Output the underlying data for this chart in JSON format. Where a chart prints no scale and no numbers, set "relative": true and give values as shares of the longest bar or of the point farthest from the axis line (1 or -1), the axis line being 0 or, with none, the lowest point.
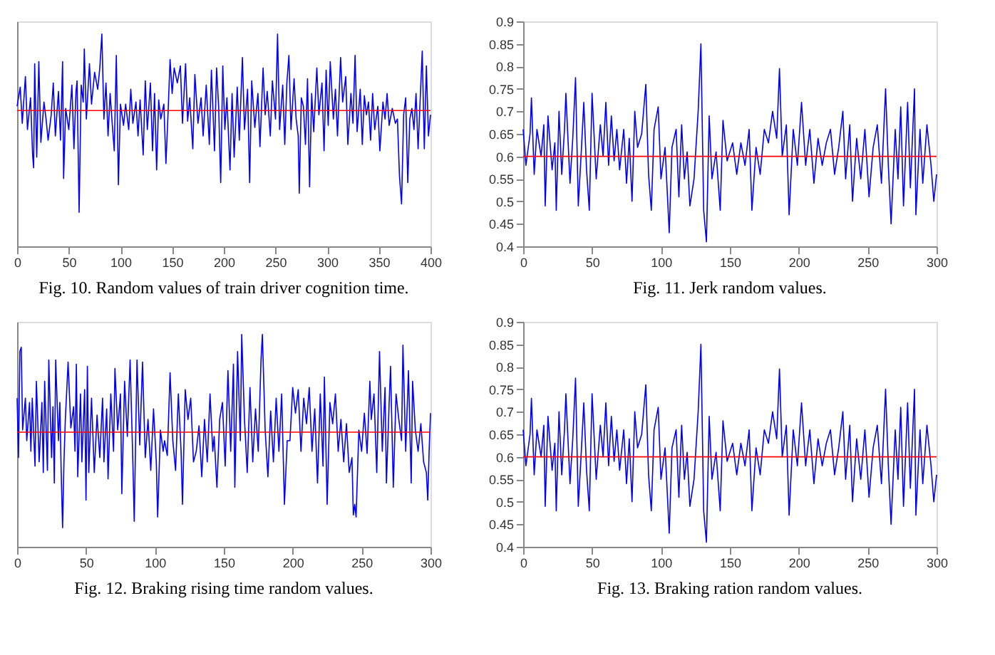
{
  "chart_data": [
    {
      "type": "line",
      "title": "Fig. 10. Random values of train driver cognition time.",
      "relative": true,
      "xlim": [
        0,
        400
      ],
      "xticks": [
        0,
        50,
        100,
        150,
        200,
        250,
        300,
        350,
        400
      ],
      "grid": false,
      "legend": false,
      "ref_lines": [
        {
          "axis": "y",
          "value": 0.64,
          "color": "#ff0000"
        }
      ],
      "series": [
        {
          "color": "#0000ff",
          "x": [
            0,
            3,
            5,
            8,
            10,
            13,
            15,
            16,
            17,
            19,
            21,
            23,
            26,
            28,
            30,
            33,
            35,
            37,
            40,
            42,
            44,
            45,
            47,
            50,
            53,
            55,
            57,
            58,
            60,
            62,
            64,
            65,
            67,
            70,
            72,
            75,
            78,
            80,
            82,
            84,
            86,
            88,
            90,
            92,
            94,
            96,
            98,
            100,
            103,
            105,
            108,
            110,
            112,
            115,
            117,
            119,
            122,
            124,
            126,
            129,
            131,
            133,
            135,
            137,
            139,
            142,
            144,
            146,
            148,
            150,
            152,
            155,
            158,
            160,
            163,
            165,
            167,
            170,
            172,
            175,
            178,
            180,
            183,
            186,
            188,
            191,
            193,
            195,
            197,
            199,
            201,
            203,
            206,
            208,
            210,
            213,
            215,
            218,
            220,
            223,
            225,
            227,
            230,
            233,
            235,
            238,
            240,
            242,
            245,
            247,
            250,
            252,
            254,
            257,
            259,
            261,
            263,
            265,
            268,
            270,
            272,
            273,
            275,
            277,
            279,
            281,
            283,
            285,
            287,
            290,
            292,
            295,
            297,
            299,
            301,
            303,
            306,
            308,
            310,
            313,
            315,
            318,
            320,
            323,
            325,
            327,
            329,
            332,
            334,
            336,
            338,
            340,
            342,
            344,
            346,
            349,
            351,
            354,
            356,
            358,
            360,
            363,
            366,
            368,
            370,
            372,
            374,
            376,
            378,
            380,
            382,
            384,
            386,
            388,
            390,
            392,
            394,
            396,
            398,
            400
          ],
          "values": [
            0.66,
            0.75,
            0.58,
            0.8,
            0.55,
            0.7,
            0.43,
            0.37,
            0.86,
            0.42,
            0.87,
            0.49,
            0.68,
            0.6,
            0.5,
            0.62,
            0.77,
            0.52,
            0.73,
            0.5,
            0.87,
            0.32,
            0.65,
            0.55,
            0.76,
            0.46,
            0.73,
            0.78,
            0.16,
            0.76,
            0.68,
            0.93,
            0.6,
            0.86,
            0.67,
            0.82,
            0.74,
            0.84,
            1.0,
            0.6,
            0.77,
            0.52,
            0.72,
            0.58,
            0.45,
            0.9,
            0.29,
            0.67,
            0.57,
            0.67,
            0.55,
            0.74,
            0.58,
            0.68,
            0.52,
            0.69,
            0.43,
            0.78,
            0.55,
            0.77,
            0.45,
            0.72,
            0.36,
            0.69,
            0.6,
            0.67,
            0.39,
            0.62,
            0.88,
            0.72,
            0.84,
            0.77,
            0.85,
            0.58,
            0.86,
            0.59,
            0.7,
            0.46,
            0.81,
            0.58,
            0.7,
            0.52,
            0.76,
            0.48,
            0.83,
            0.45,
            0.84,
            0.66,
            0.3,
            0.85,
            0.55,
            0.7,
            0.36,
            0.72,
            0.42,
            0.75,
            0.5,
            0.89,
            0.55,
            0.74,
            0.3,
            0.78,
            0.56,
            0.72,
            0.47,
            0.84,
            0.62,
            0.73,
            0.52,
            0.78,
            0.6,
            1.0,
            0.55,
            0.76,
            0.48,
            0.77,
            0.9,
            0.55,
            0.79,
            0.6,
            0.52,
            0.25,
            0.7,
            0.66,
            0.48,
            0.79,
            0.28,
            0.72,
            0.54,
            0.84,
            0.62,
            0.77,
            0.45,
            0.83,
            0.57,
            0.87,
            0.6,
            0.74,
            0.52,
            0.89,
            0.68,
            0.8,
            0.48,
            0.72,
            0.58,
            0.9,
            0.54,
            0.74,
            0.48,
            0.71,
            0.62,
            0.68,
            0.5,
            0.72,
            0.55,
            0.66,
            0.45,
            0.68,
            0.6,
            0.72,
            0.57,
            0.65,
            0.58,
            0.6,
            0.33,
            0.2,
            0.62,
            0.7,
            0.3,
            0.6,
            0.65,
            0.55,
            0.72,
            0.46,
            0.69,
            0.92,
            0.46,
            0.85,
            0.52,
            0.62
          ]
        }
      ]
    },
    {
      "type": "line",
      "title": "Fig. 11. Jerk random values.",
      "ylim": [
        0.4,
        0.9
      ],
      "yticks": [
        0.4,
        0.45,
        0.5,
        0.55,
        0.6,
        0.65,
        0.7,
        0.75,
        0.8,
        0.85,
        0.9
      ],
      "xlim": [
        0,
        300
      ],
      "xticks": [
        0,
        50,
        100,
        150,
        200,
        250,
        300
      ],
      "grid": false,
      "legend": false,
      "ref_lines": [
        {
          "axis": "y",
          "value": 0.6,
          "color": "#ff0000"
        }
      ],
      "series": [
        {
          "color": "#0000ff",
          "x": [
            0,
            2,
            5,
            6,
            8,
            10,
            13,
            15,
            16,
            18,
            21,
            23,
            24,
            26,
            28,
            30,
            31,
            34,
            36,
            38,
            40,
            42,
            44,
            46,
            48,
            50,
            53,
            56,
            58,
            60,
            62,
            64,
            66,
            68,
            70,
            73,
            75,
            77,
            79,
            81,
            83,
            86,
            89,
            91,
            93,
            95,
            98,
            100,
            103,
            106,
            108,
            111,
            113,
            115,
            117,
            119,
            121,
            124,
            127,
            129,
            131,
            133,
            135,
            137,
            140,
            143,
            145,
            148,
            152,
            155,
            158,
            161,
            164,
            166,
            169,
            172,
            175,
            178,
            181,
            184,
            186,
            188,
            191,
            193,
            196,
            199,
            202,
            205,
            208,
            211,
            214,
            217,
            220,
            223,
            226,
            229,
            232,
            234,
            237,
            239,
            242,
            245,
            248,
            251,
            254,
            257,
            260,
            263,
            265,
            267,
            270,
            272,
            274,
            276,
            279,
            281,
            284,
            285,
            288,
            290,
            293,
            296,
            298,
            300
          ],
          "values": [
            0.66,
            0.58,
            0.65,
            0.73,
            0.56,
            0.66,
            0.6,
            0.67,
            0.49,
            0.69,
            0.57,
            0.63,
            0.48,
            0.7,
            0.56,
            0.66,
            0.74,
            0.54,
            0.64,
            0.775,
            0.49,
            0.6,
            0.72,
            0.57,
            0.48,
            0.74,
            0.55,
            0.67,
            0.6,
            0.72,
            0.58,
            0.69,
            0.59,
            0.66,
            0.57,
            0.66,
            0.54,
            0.64,
            0.5,
            0.7,
            0.62,
            0.65,
            0.76,
            0.56,
            0.48,
            0.66,
            0.71,
            0.55,
            0.62,
            0.43,
            0.62,
            0.66,
            0.51,
            0.67,
            0.55,
            0.61,
            0.49,
            0.55,
            0.7,
            0.85,
            0.48,
            0.41,
            0.69,
            0.55,
            0.61,
            0.48,
            0.68,
            0.59,
            0.63,
            0.56,
            0.63,
            0.58,
            0.66,
            0.48,
            0.62,
            0.56,
            0.66,
            0.63,
            0.7,
            0.64,
            0.795,
            0.6,
            0.67,
            0.47,
            0.66,
            0.58,
            0.72,
            0.58,
            0.66,
            0.54,
            0.64,
            0.58,
            0.63,
            0.66,
            0.56,
            0.62,
            0.7,
            0.55,
            0.67,
            0.5,
            0.64,
            0.55,
            0.66,
            0.51,
            0.62,
            0.67,
            0.54,
            0.75,
            0.58,
            0.45,
            0.66,
            0.55,
            0.71,
            0.49,
            0.72,
            0.53,
            0.75,
            0.47,
            0.66,
            0.54,
            0.67,
            0.58,
            0.5,
            0.56
          ]
        }
      ]
    },
    {
      "type": "line",
      "title": "Fig. 12. Braking rising time random values.",
      "relative": true,
      "xlim": [
        0,
        300
      ],
      "xticks": [
        0,
        50,
        100,
        150,
        200,
        250,
        300
      ],
      "grid": false,
      "legend": false,
      "ref_lines": [
        {
          "axis": "y",
          "value": 0.54,
          "color": "#ff0000"
        }
      ],
      "series": [
        {
          "color": "#0000ff",
          "x": [
            0,
            1,
            2,
            3,
            4,
            6,
            7,
            9,
            10,
            11,
            13,
            14,
            16,
            18,
            19,
            20,
            22,
            23,
            25,
            26,
            27,
            28,
            30,
            31,
            32,
            33,
            34,
            35,
            37,
            39,
            41,
            42,
            43,
            44,
            46,
            47,
            49,
            50,
            51,
            52,
            54,
            56,
            58,
            60,
            62,
            63,
            65,
            66,
            68,
            70,
            71,
            73,
            75,
            76,
            78,
            80,
            82,
            84,
            85,
            87,
            89,
            91,
            93,
            95,
            97,
            99,
            101,
            102,
            104,
            106,
            107,
            109,
            111,
            113,
            115,
            117,
            119,
            120,
            122,
            124,
            126,
            128,
            130,
            132,
            134,
            136,
            138,
            140,
            142,
            143,
            145,
            147,
            149,
            151,
            153,
            155,
            157,
            158,
            160,
            162,
            163,
            165,
            167,
            169,
            171,
            173,
            175,
            177,
            178,
            180,
            182,
            184,
            186,
            188,
            190,
            192,
            194,
            196,
            198,
            200,
            202,
            204,
            206,
            208,
            210,
            212,
            214,
            216,
            218,
            220,
            222,
            223,
            225,
            227,
            229,
            231,
            233,
            235,
            237,
            239,
            241,
            243,
            244,
            245,
            246,
            248,
            250,
            252,
            254,
            256,
            257,
            259,
            261,
            263,
            265,
            267,
            268,
            270,
            271,
            273,
            275,
            277,
            279,
            280,
            282,
            284,
            286,
            287,
            289,
            291,
            293,
            295,
            297,
            298,
            299,
            300
          ],
          "values": [
            0.7,
            0.42,
            0.92,
            0.94,
            0.55,
            0.7,
            0.5,
            0.68,
            0.45,
            0.7,
            0.38,
            0.78,
            0.4,
            0.68,
            0.35,
            0.78,
            0.36,
            0.88,
            0.42,
            0.66,
            0.3,
            0.88,
            0.5,
            0.68,
            0.35,
            0.09,
            0.4,
            0.6,
            0.87,
            0.56,
            0.66,
            0.45,
            0.86,
            0.33,
            0.72,
            0.4,
            0.74,
            0.22,
            0.85,
            0.35,
            0.7,
            0.35,
            0.62,
            0.42,
            0.7,
            0.4,
            0.65,
            0.32,
            0.72,
            0.45,
            0.84,
            0.55,
            0.72,
            0.25,
            0.78,
            0.52,
            0.88,
            0.4,
            0.12,
            0.88,
            0.48,
            0.87,
            0.42,
            0.6,
            0.36,
            0.65,
            0.4,
            0.14,
            0.55,
            0.45,
            0.5,
            0.43,
            0.82,
            0.5,
            0.36,
            0.72,
            0.45,
            0.2,
            0.74,
            0.6,
            0.7,
            0.4,
            0.45,
            0.57,
            0.33,
            0.6,
            0.4,
            0.72,
            0.45,
            0.52,
            0.28,
            0.6,
            0.68,
            0.38,
            0.83,
            0.45,
            0.86,
            0.28,
            0.92,
            0.5,
            1.0,
            0.6,
            0.35,
            0.75,
            0.4,
            0.65,
            0.45,
            0.88,
            1.0,
            0.55,
            0.33,
            0.64,
            0.4,
            0.7,
            0.45,
            0.72,
            0.2,
            0.5,
            0.5,
            0.75,
            0.63,
            0.74,
            0.45,
            0.7,
            0.58,
            0.75,
            0.45,
            0.65,
            0.3,
            0.72,
            0.38,
            0.8,
            0.2,
            0.68,
            0.58,
            0.72,
            0.45,
            0.6,
            0.4,
            0.58,
            0.35,
            0.42,
            0.15,
            0.2,
            0.14,
            0.55,
            0.45,
            0.63,
            0.44,
            0.78,
            0.6,
            0.72,
            0.35,
            0.92,
            0.45,
            0.75,
            0.3,
            0.68,
            0.85,
            0.28,
            0.72,
            0.6,
            0.5,
            0.95,
            0.45,
            0.83,
            0.3,
            0.78,
            0.55,
            0.45,
            0.58,
            0.4,
            0.35,
            0.22,
            0.45,
            0.63
          ]
        }
      ]
    },
    {
      "type": "line",
      "title": "Fig. 13. Braking ration random values.",
      "ylim": [
        0.4,
        0.9
      ],
      "yticks": [
        0.4,
        0.45,
        0.5,
        0.55,
        0.6,
        0.65,
        0.7,
        0.75,
        0.8,
        0.85,
        0.9
      ],
      "xlim": [
        0,
        300
      ],
      "xticks": [
        0,
        50,
        100,
        150,
        200,
        250,
        300
      ],
      "grid": false,
      "legend": false,
      "ref_lines": [
        {
          "axis": "y",
          "value": 0.6,
          "color": "#ff0000"
        }
      ],
      "series": [
        {
          "color": "#0000ff",
          "x": [
            0,
            2,
            5,
            6,
            8,
            10,
            13,
            15,
            16,
            18,
            21,
            23,
            24,
            26,
            28,
            30,
            31,
            34,
            36,
            38,
            40,
            42,
            44,
            46,
            48,
            50,
            53,
            56,
            58,
            60,
            62,
            64,
            66,
            68,
            70,
            73,
            75,
            77,
            79,
            81,
            83,
            86,
            89,
            91,
            93,
            95,
            98,
            100,
            103,
            106,
            108,
            111,
            113,
            115,
            117,
            119,
            121,
            124,
            127,
            129,
            131,
            133,
            135,
            137,
            140,
            143,
            145,
            148,
            152,
            155,
            158,
            161,
            164,
            166,
            169,
            172,
            175,
            178,
            181,
            184,
            186,
            188,
            191,
            193,
            196,
            199,
            202,
            205,
            208,
            211,
            214,
            217,
            220,
            223,
            226,
            229,
            232,
            234,
            237,
            239,
            242,
            245,
            248,
            251,
            254,
            257,
            260,
            263,
            265,
            267,
            270,
            272,
            274,
            276,
            279,
            281,
            284,
            285,
            288,
            290,
            293,
            296,
            298,
            300
          ],
          "values": [
            0.66,
            0.58,
            0.65,
            0.73,
            0.56,
            0.66,
            0.6,
            0.67,
            0.49,
            0.69,
            0.57,
            0.63,
            0.48,
            0.7,
            0.56,
            0.66,
            0.74,
            0.54,
            0.64,
            0.775,
            0.49,
            0.6,
            0.72,
            0.57,
            0.48,
            0.74,
            0.55,
            0.67,
            0.6,
            0.72,
            0.58,
            0.69,
            0.59,
            0.66,
            0.57,
            0.66,
            0.54,
            0.64,
            0.5,
            0.7,
            0.62,
            0.65,
            0.76,
            0.56,
            0.48,
            0.66,
            0.71,
            0.55,
            0.62,
            0.43,
            0.62,
            0.66,
            0.51,
            0.67,
            0.55,
            0.61,
            0.49,
            0.55,
            0.7,
            0.85,
            0.48,
            0.41,
            0.69,
            0.55,
            0.61,
            0.48,
            0.68,
            0.59,
            0.63,
            0.56,
            0.63,
            0.58,
            0.66,
            0.48,
            0.62,
            0.56,
            0.66,
            0.63,
            0.7,
            0.64,
            0.795,
            0.6,
            0.67,
            0.47,
            0.66,
            0.58,
            0.72,
            0.58,
            0.66,
            0.54,
            0.64,
            0.58,
            0.63,
            0.66,
            0.56,
            0.62,
            0.7,
            0.55,
            0.67,
            0.5,
            0.64,
            0.55,
            0.66,
            0.51,
            0.62,
            0.67,
            0.54,
            0.75,
            0.58,
            0.45,
            0.66,
            0.55,
            0.71,
            0.49,
            0.72,
            0.53,
            0.75,
            0.47,
            0.66,
            0.54,
            0.67,
            0.58,
            0.5,
            0.56
          ]
        }
      ]
    }
  ]
}
